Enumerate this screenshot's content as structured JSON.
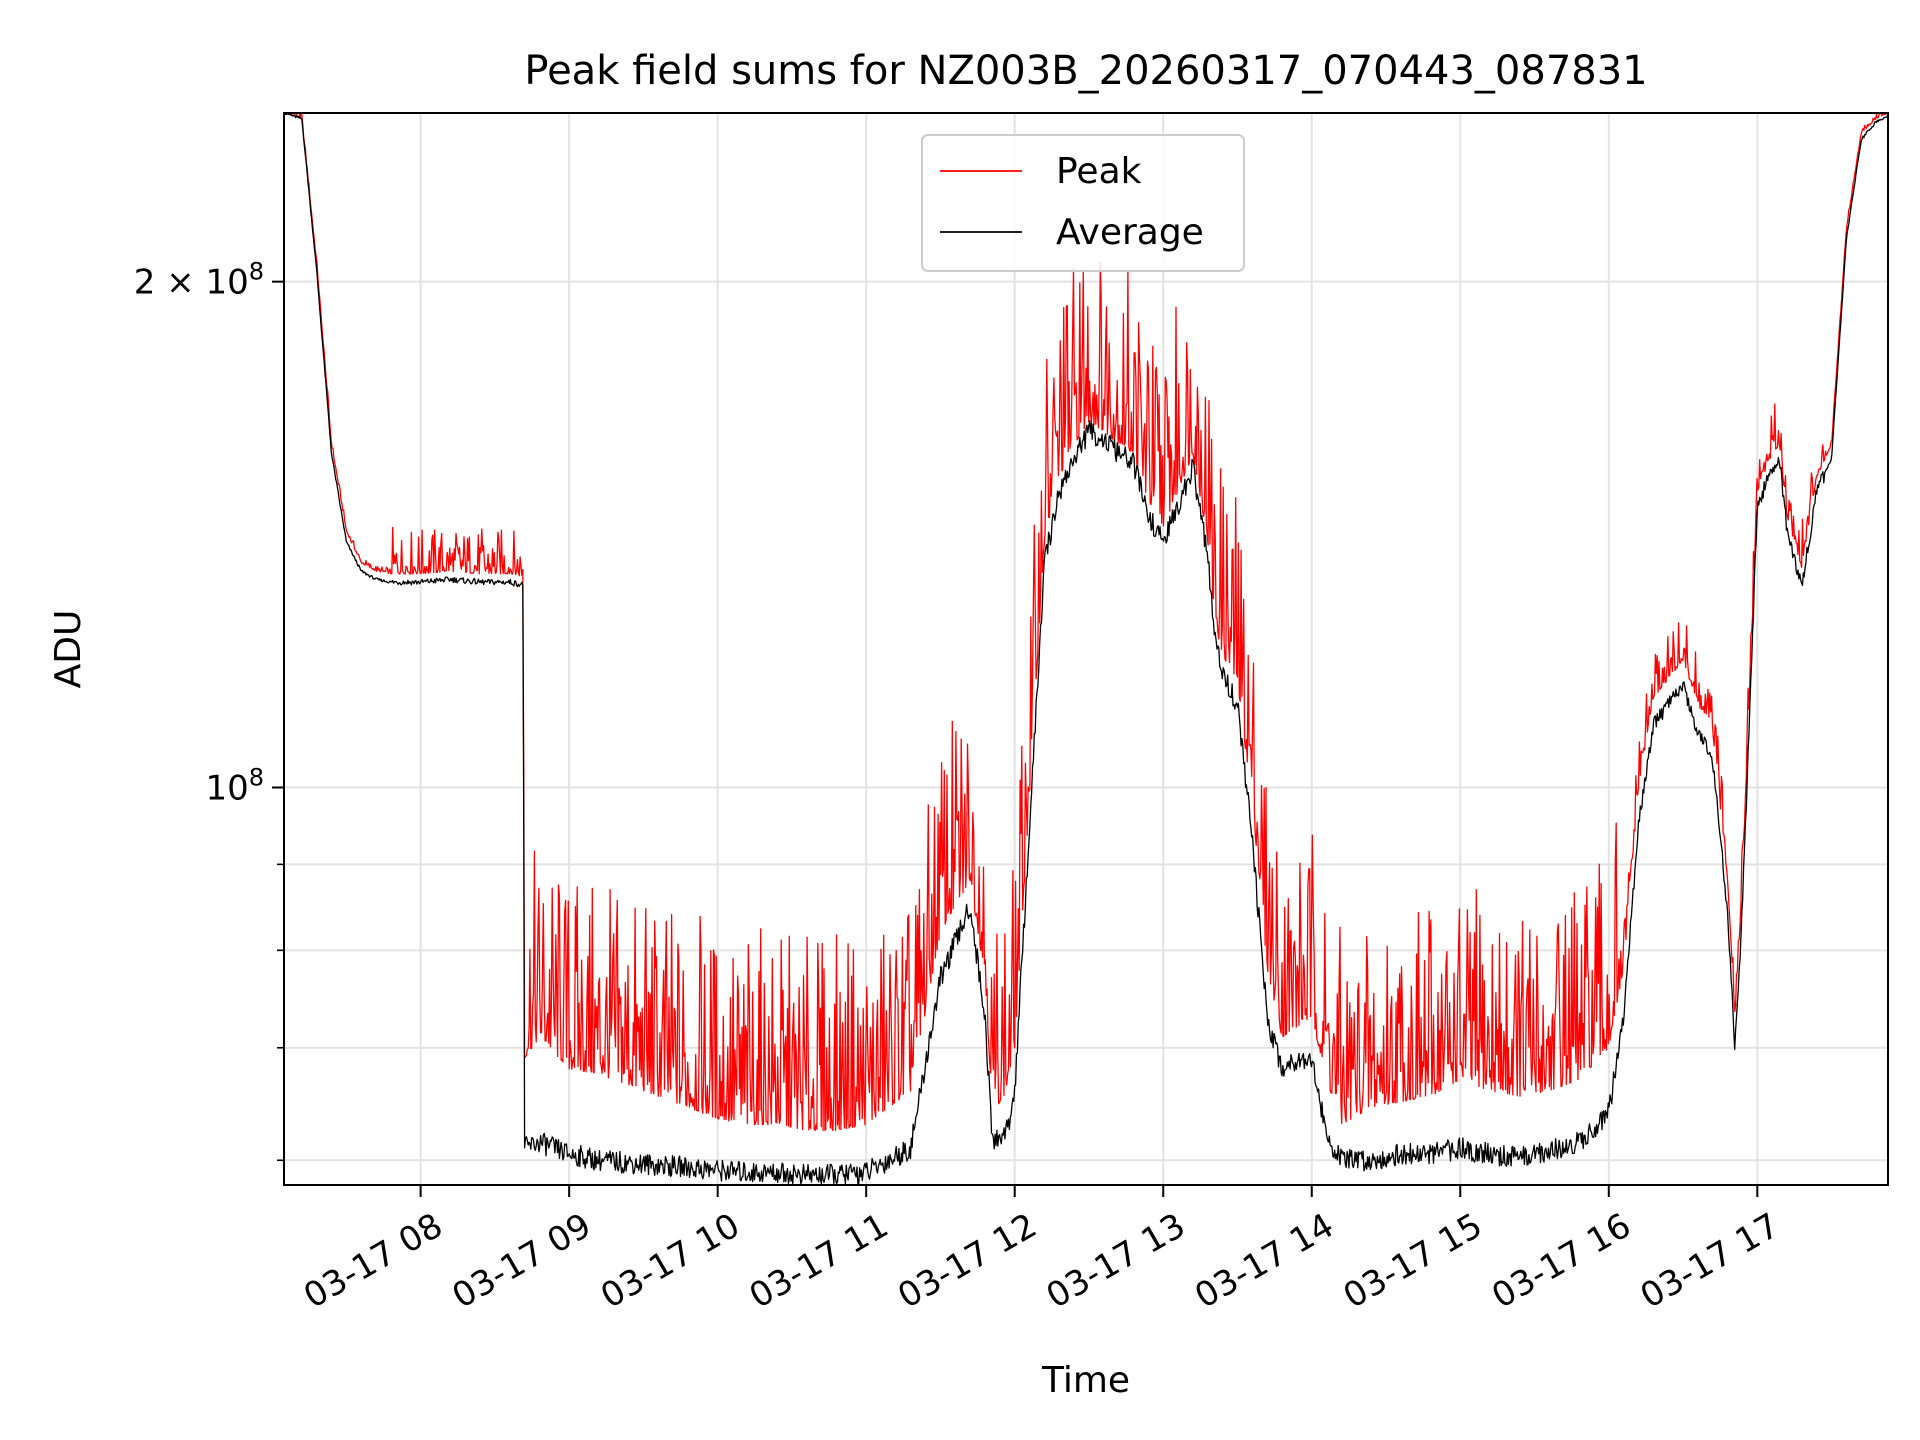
{
  "chart_data": {
    "type": "line",
    "title": "Peak field sums for NZ003B_20260317_070443_087831",
    "xlabel": "Time",
    "ylabel": "ADU",
    "yscale": "log",
    "ylim": [
      58000000,
      252000000
    ],
    "xlim_hours": [
      7.08,
      17.88
    ],
    "grid": true,
    "legend_position": "top-center",
    "x_ticks": [
      {
        "hour": 8,
        "label": "03-17 08"
      },
      {
        "hour": 9,
        "label": "03-17 09"
      },
      {
        "hour": 10,
        "label": "03-17 10"
      },
      {
        "hour": 11,
        "label": "03-17 11"
      },
      {
        "hour": 12,
        "label": "03-17 12"
      },
      {
        "hour": 13,
        "label": "03-17 13"
      },
      {
        "hour": 14,
        "label": "03-17 14"
      },
      {
        "hour": 15,
        "label": "03-17 15"
      },
      {
        "hour": 16,
        "label": "03-17 16"
      },
      {
        "hour": 17,
        "label": "03-17 17"
      }
    ],
    "y_major_ticks": [
      {
        "value": 100000000,
        "label_base": "10",
        "label_exp": "8"
      },
      {
        "value": 200000000,
        "label_base": "2 × 10",
        "label_exp": "8"
      }
    ],
    "y_minor_ticks": [
      60000000,
      70000000,
      80000000,
      90000000
    ],
    "series": [
      {
        "name": "Peak",
        "color": "#ff0000",
        "x_hours": [
          7.08,
          7.2,
          7.3,
          7.4,
          7.5,
          7.6,
          7.7,
          7.8,
          8.0,
          8.2,
          8.4,
          8.6,
          8.69,
          8.7,
          8.8,
          9.0,
          9.2,
          9.4,
          9.6,
          9.8,
          10.0,
          10.2,
          10.4,
          10.6,
          10.8,
          11.0,
          11.3,
          11.5,
          11.7,
          11.8,
          11.85,
          11.9,
          11.95,
          12.0,
          12.2,
          12.3,
          12.4,
          12.5,
          12.6,
          12.7,
          12.8,
          12.9,
          13.0,
          13.1,
          13.2,
          13.3,
          13.35,
          13.4,
          13.5,
          13.6,
          13.7,
          13.8,
          13.9,
          14.0,
          14.1,
          14.2,
          14.4,
          14.6,
          14.8,
          15.0,
          15.2,
          15.4,
          15.6,
          15.8,
          16.0,
          16.1,
          16.2,
          16.3,
          16.4,
          16.5,
          16.6,
          16.7,
          16.8,
          16.85,
          16.9,
          17.0,
          17.1,
          17.15,
          17.2,
          17.3,
          17.4,
          17.5,
          17.6,
          17.7,
          17.8,
          17.88
        ],
        "values": [
          252000000,
          250000000,
          205000000,
          160000000,
          142000000,
          136000000,
          134500000,
          134000000,
          134000000,
          134500000,
          134000000,
          134000000,
          133500000,
          69000000,
          71000000,
          68000000,
          67500000,
          66500000,
          65500000,
          64500000,
          63500000,
          63000000,
          63000000,
          62500000,
          62500000,
          63000000,
          66000000,
          82000000,
          88000000,
          77000000,
          64000000,
          65000000,
          66000000,
          70000000,
          140000000,
          153000000,
          160000000,
          165000000,
          163000000,
          160000000,
          158000000,
          148000000,
          143000000,
          150000000,
          158000000,
          140000000,
          125000000,
          120000000,
          115000000,
          98000000,
          78000000,
          71000000,
          72000000,
          73000000,
          67000000,
          63000000,
          64500000,
          65000000,
          65500000,
          67000000,
          66000000,
          65500000,
          66000000,
          67000000,
          70000000,
          78000000,
          100000000,
          113000000,
          116000000,
          119000000,
          112000000,
          108000000,
          88000000,
          73000000,
          88000000,
          150000000,
          158000000,
          160000000,
          145000000,
          135000000,
          153000000,
          160000000,
          215000000,
          245000000,
          250000000,
          252000000
        ]
      },
      {
        "name": "Average",
        "color": "#000000",
        "x_hours": [
          7.08,
          7.2,
          7.3,
          7.4,
          7.5,
          7.6,
          7.7,
          7.8,
          8.0,
          8.2,
          8.4,
          8.6,
          8.69,
          8.7,
          8.8,
          9.0,
          9.2,
          9.4,
          9.6,
          9.8,
          10.0,
          10.2,
          10.4,
          10.6,
          10.8,
          11.0,
          11.3,
          11.5,
          11.7,
          11.8,
          11.85,
          11.9,
          11.95,
          12.0,
          12.2,
          12.3,
          12.4,
          12.5,
          12.6,
          12.7,
          12.8,
          12.9,
          13.0,
          13.1,
          13.2,
          13.3,
          13.35,
          13.4,
          13.5,
          13.6,
          13.7,
          13.8,
          13.9,
          14.0,
          14.1,
          14.2,
          14.4,
          14.6,
          14.8,
          15.0,
          15.2,
          15.4,
          15.6,
          15.8,
          16.0,
          16.1,
          16.2,
          16.3,
          16.4,
          16.5,
          16.6,
          16.7,
          16.8,
          16.85,
          16.9,
          17.0,
          17.1,
          17.15,
          17.2,
          17.3,
          17.4,
          17.5,
          17.6,
          17.7,
          17.8,
          17.88
        ],
        "values": [
          252000000,
          250000000,
          203000000,
          158000000,
          140000000,
          134500000,
          133000000,
          132500000,
          132500000,
          133000000,
          132500000,
          132500000,
          132000000,
          61000000,
          61500000,
          60500000,
          60000000,
          59800000,
          59600000,
          59400000,
          59200000,
          59000000,
          59000000,
          58800000,
          58800000,
          59000000,
          61000000,
          77000000,
          85000000,
          73000000,
          61500000,
          62000000,
          62500000,
          66000000,
          136000000,
          150000000,
          157000000,
          163000000,
          161000000,
          158000000,
          156000000,
          145000000,
          140000000,
          147000000,
          155000000,
          137000000,
          122000000,
          117000000,
          112000000,
          93000000,
          73000000,
          68000000,
          69000000,
          69000000,
          62000000,
          60000000,
          60000000,
          60500000,
          60500000,
          61000000,
          60500000,
          60200000,
          60800000,
          61500000,
          64000000,
          73000000,
          95000000,
          109000000,
          112000000,
          115000000,
          108000000,
          104000000,
          84000000,
          70000000,
          85000000,
          147000000,
          155000000,
          157000000,
          142000000,
          132000000,
          150000000,
          157000000,
          212000000,
          243000000,
          249000000,
          251000000
        ]
      }
    ]
  }
}
